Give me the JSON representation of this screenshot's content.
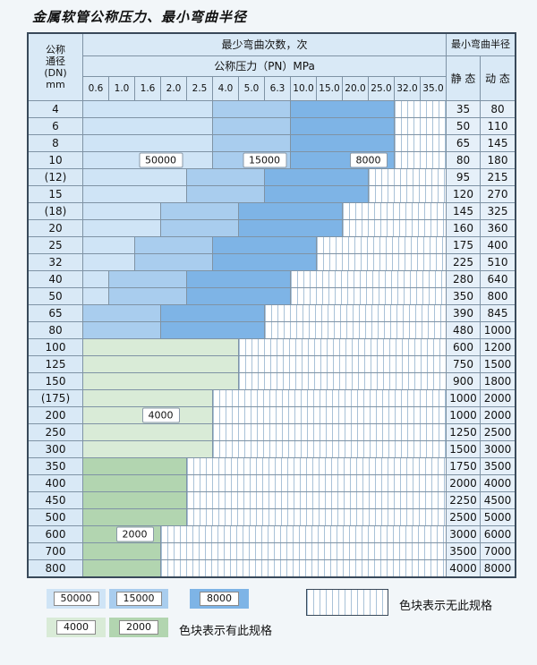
{
  "title": "金属软管公称压力、最小弯曲半径",
  "header": {
    "dn_lines": [
      "公称",
      "通径",
      "(DN)",
      "mm"
    ],
    "cycles_label": "最少弯曲次数，次",
    "pn_label": "公称压力（PN）MPa",
    "radius_label": "最小弯曲半径",
    "static_label": "静 态",
    "dynamic_label": "动 态"
  },
  "colors": {
    "c50000": "#cfe4f6",
    "c15000": "#a9cdee",
    "c8000": "#7eb4e6",
    "c4000": "#d9ebd7",
    "c2000": "#b2d5b0",
    "header_bg": "#d9e9f6",
    "side_bg": "#e6f0f9",
    "hatch_line": "#a9c2d8",
    "grid": "#7f93a5"
  },
  "chart_data": {
    "type": "table",
    "title": "金属软管公称压力、最小弯曲半径",
    "pressure_columns": [
      "0.6",
      "1.0",
      "1.6",
      "2.0",
      "2.5",
      "4.0",
      "5.0",
      "6.3",
      "10.0",
      "15.0",
      "20.0",
      "25.0",
      "32.0",
      "35.0"
    ],
    "cycle_bands": [
      "50000",
      "15000",
      "8000",
      "4000",
      "2000"
    ],
    "rows": [
      {
        "dn": "4",
        "static": "35",
        "dynamic": "80",
        "segments": [
          {
            "c": "c50000",
            "n": 5
          },
          {
            "c": "c15000",
            "n": 3
          },
          {
            "c": "c8000",
            "n": 4
          },
          {
            "c": "hatch",
            "n": 2
          }
        ]
      },
      {
        "dn": "6",
        "static": "50",
        "dynamic": "110",
        "segments": [
          {
            "c": "c50000",
            "n": 5
          },
          {
            "c": "c15000",
            "n": 3
          },
          {
            "c": "c8000",
            "n": 4
          },
          {
            "c": "hatch",
            "n": 2
          }
        ]
      },
      {
        "dn": "8",
        "static": "65",
        "dynamic": "145",
        "segments": [
          {
            "c": "c50000",
            "n": 5
          },
          {
            "c": "c15000",
            "n": 3
          },
          {
            "c": "c8000",
            "n": 4
          },
          {
            "c": "hatch",
            "n": 2
          }
        ]
      },
      {
        "dn": "10",
        "static": "80",
        "dynamic": "180",
        "segments": [
          {
            "c": "c50000",
            "n": 5
          },
          {
            "c": "c15000",
            "n": 3
          },
          {
            "c": "c8000",
            "n": 4
          },
          {
            "c": "hatch",
            "n": 2
          }
        ]
      },
      {
        "dn": "(12)",
        "static": "95",
        "dynamic": "215",
        "segments": [
          {
            "c": "c50000",
            "n": 4
          },
          {
            "c": "c15000",
            "n": 3
          },
          {
            "c": "c8000",
            "n": 4
          },
          {
            "c": "hatch",
            "n": 3
          }
        ]
      },
      {
        "dn": "15",
        "static": "120",
        "dynamic": "270",
        "segments": [
          {
            "c": "c50000",
            "n": 4
          },
          {
            "c": "c15000",
            "n": 3
          },
          {
            "c": "c8000",
            "n": 4
          },
          {
            "c": "hatch",
            "n": 3
          }
        ]
      },
      {
        "dn": "(18)",
        "static": "145",
        "dynamic": "325",
        "segments": [
          {
            "c": "c50000",
            "n": 3
          },
          {
            "c": "c15000",
            "n": 3
          },
          {
            "c": "c8000",
            "n": 4
          },
          {
            "c": "hatch",
            "n": 4
          }
        ]
      },
      {
        "dn": "20",
        "static": "160",
        "dynamic": "360",
        "segments": [
          {
            "c": "c50000",
            "n": 3
          },
          {
            "c": "c15000",
            "n": 3
          },
          {
            "c": "c8000",
            "n": 4
          },
          {
            "c": "hatch",
            "n": 4
          }
        ]
      },
      {
        "dn": "25",
        "static": "175",
        "dynamic": "400",
        "segments": [
          {
            "c": "c50000",
            "n": 2
          },
          {
            "c": "c15000",
            "n": 3
          },
          {
            "c": "c8000",
            "n": 4
          },
          {
            "c": "hatch",
            "n": 5
          }
        ]
      },
      {
        "dn": "32",
        "static": "225",
        "dynamic": "510",
        "segments": [
          {
            "c": "c50000",
            "n": 2
          },
          {
            "c": "c15000",
            "n": 3
          },
          {
            "c": "c8000",
            "n": 4
          },
          {
            "c": "hatch",
            "n": 5
          }
        ]
      },
      {
        "dn": "40",
        "static": "280",
        "dynamic": "640",
        "segments": [
          {
            "c": "c50000",
            "n": 1
          },
          {
            "c": "c15000",
            "n": 3
          },
          {
            "c": "c8000",
            "n": 4
          },
          {
            "c": "hatch",
            "n": 6
          }
        ]
      },
      {
        "dn": "50",
        "static": "350",
        "dynamic": "800",
        "segments": [
          {
            "c": "c50000",
            "n": 1
          },
          {
            "c": "c15000",
            "n": 3
          },
          {
            "c": "c8000",
            "n": 4
          },
          {
            "c": "hatch",
            "n": 6
          }
        ]
      },
      {
        "dn": "65",
        "static": "390",
        "dynamic": "845",
        "segments": [
          {
            "c": "c15000",
            "n": 3
          },
          {
            "c": "c8000",
            "n": 4
          },
          {
            "c": "hatch",
            "n": 7
          }
        ]
      },
      {
        "dn": "80",
        "static": "480",
        "dynamic": "1000",
        "segments": [
          {
            "c": "c15000",
            "n": 3
          },
          {
            "c": "c8000",
            "n": 4
          },
          {
            "c": "hatch",
            "n": 7
          }
        ]
      },
      {
        "dn": "100",
        "static": "600",
        "dynamic": "1200",
        "segments": [
          {
            "c": "c4000",
            "n": 6
          },
          {
            "c": "hatch",
            "n": 8
          }
        ]
      },
      {
        "dn": "125",
        "static": "750",
        "dynamic": "1500",
        "segments": [
          {
            "c": "c4000",
            "n": 6
          },
          {
            "c": "hatch",
            "n": 8
          }
        ]
      },
      {
        "dn": "150",
        "static": "900",
        "dynamic": "1800",
        "segments": [
          {
            "c": "c4000",
            "n": 6
          },
          {
            "c": "hatch",
            "n": 8
          }
        ]
      },
      {
        "dn": "(175)",
        "static": "1000",
        "dynamic": "2000",
        "segments": [
          {
            "c": "c4000",
            "n": 5
          },
          {
            "c": "hatch",
            "n": 9
          }
        ]
      },
      {
        "dn": "200",
        "static": "1000",
        "dynamic": "2000",
        "segments": [
          {
            "c": "c4000",
            "n": 5
          },
          {
            "c": "hatch",
            "n": 9
          }
        ]
      },
      {
        "dn": "250",
        "static": "1250",
        "dynamic": "2500",
        "segments": [
          {
            "c": "c4000",
            "n": 5
          },
          {
            "c": "hatch",
            "n": 9
          }
        ]
      },
      {
        "dn": "300",
        "static": "1500",
        "dynamic": "3000",
        "segments": [
          {
            "c": "c4000",
            "n": 5
          },
          {
            "c": "hatch",
            "n": 9
          }
        ]
      },
      {
        "dn": "350",
        "static": "1750",
        "dynamic": "3500",
        "segments": [
          {
            "c": "c2000",
            "n": 4
          },
          {
            "c": "hatch",
            "n": 10
          }
        ]
      },
      {
        "dn": "400",
        "static": "2000",
        "dynamic": "4000",
        "segments": [
          {
            "c": "c2000",
            "n": 4
          },
          {
            "c": "hatch",
            "n": 10
          }
        ]
      },
      {
        "dn": "450",
        "static": "2250",
        "dynamic": "4500",
        "segments": [
          {
            "c": "c2000",
            "n": 4
          },
          {
            "c": "hatch",
            "n": 10
          }
        ]
      },
      {
        "dn": "500",
        "static": "2500",
        "dynamic": "5000",
        "segments": [
          {
            "c": "c2000",
            "n": 4
          },
          {
            "c": "hatch",
            "n": 10
          }
        ]
      },
      {
        "dn": "600",
        "static": "3000",
        "dynamic": "6000",
        "segments": [
          {
            "c": "c2000",
            "n": 3
          },
          {
            "c": "hatch",
            "n": 11
          }
        ]
      },
      {
        "dn": "700",
        "static": "3500",
        "dynamic": "7000",
        "segments": [
          {
            "c": "c2000",
            "n": 3
          },
          {
            "c": "hatch",
            "n": 11
          }
        ]
      },
      {
        "dn": "800",
        "static": "4000",
        "dynamic": "8000",
        "segments": [
          {
            "c": "c2000",
            "n": 3
          },
          {
            "c": "hatch",
            "n": 11
          }
        ]
      }
    ]
  },
  "overlays": [
    {
      "label": "50000",
      "row": 3,
      "col": 2,
      "span": 2
    },
    {
      "label": "15000",
      "row": 3,
      "col": 6,
      "span": 2
    },
    {
      "label": "8000",
      "row": 3,
      "col": 10,
      "span": 2
    },
    {
      "label": "4000",
      "row": 18,
      "col": 2,
      "span": 2
    },
    {
      "label": "2000",
      "row": 25,
      "col": 1,
      "span": 2
    }
  ],
  "legend": {
    "items": [
      {
        "label": "50000",
        "color": "c50000"
      },
      {
        "label": "15000",
        "color": "c15000"
      },
      {
        "label": "8000",
        "color": "c8000"
      },
      {
        "label": "4000",
        "color": "c4000"
      },
      {
        "label": "2000",
        "color": "c2000"
      }
    ],
    "has_spec_label": "色块表示有此规格",
    "no_spec_label": "色块表示无此规格"
  }
}
